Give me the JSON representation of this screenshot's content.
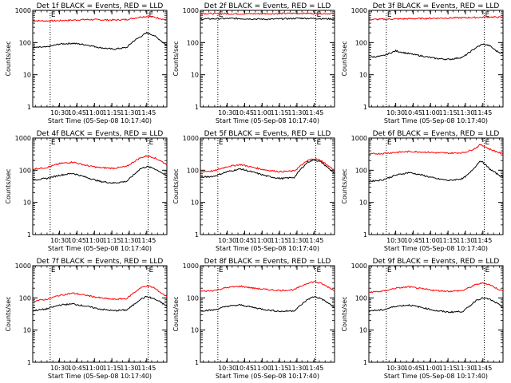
{
  "chart_data": [
    {
      "type": "line",
      "title": "Det 1f BLACK = Events, RED = LLD",
      "xlabel": "Start Time (05-Sep-08 10:17:40)",
      "ylabel": "Counts/sec",
      "yscale": "log",
      "ylim": [
        1,
        1000
      ],
      "y_ticks": [
        "1",
        "10",
        "100",
        "1000"
      ],
      "x_ticks": [
        "10:30",
        "10:45",
        "11:00",
        "11:15",
        "11:30",
        "11:45"
      ],
      "markers": [
        "E",
        "E"
      ],
      "series": [
        {
          "color": "#ff0000",
          "x": [
            0,
            0.1,
            0.2,
            0.3,
            0.4,
            0.5,
            0.6,
            0.7,
            0.8,
            0.85,
            0.9,
            0.95,
            1.0
          ],
          "y": [
            480,
            470,
            480,
            500,
            520,
            510,
            500,
            520,
            620,
            650,
            620,
            560,
            500
          ]
        },
        {
          "color": "#000000",
          "x": [
            0,
            0.1,
            0.2,
            0.3,
            0.4,
            0.5,
            0.6,
            0.7,
            0.75,
            0.8,
            0.85,
            0.9,
            0.95,
            1.0
          ],
          "y": [
            70,
            72,
            90,
            95,
            85,
            70,
            62,
            70,
            110,
            150,
            200,
            170,
            120,
            80
          ]
        }
      ]
    },
    {
      "type": "line",
      "title": "Det 2f BLACK = Events, RED = LLD",
      "xlabel": "Start Time (05-Sep-08 10:17:40)",
      "ylabel": "Counts/sec",
      "yscale": "log",
      "ylim": [
        1,
        1000
      ],
      "y_ticks": [
        "1",
        "10",
        "100",
        "1000"
      ],
      "x_ticks": [
        "10:30",
        "10:45",
        "11:00",
        "11:15",
        "11:30",
        "11:45"
      ],
      "markers": [
        "E",
        "E"
      ],
      "series": [
        {
          "color": "#ff0000",
          "x": [
            0,
            0.25,
            0.5,
            0.75,
            1.0
          ],
          "y": [
            800,
            780,
            790,
            810,
            790
          ]
        },
        {
          "color": "#000000",
          "x": [
            0,
            0.25,
            0.5,
            0.75,
            1.0
          ],
          "y": [
            540,
            560,
            530,
            570,
            540
          ]
        }
      ]
    },
    {
      "type": "line",
      "title": "Det 3f BLACK = Events, RED = LLD",
      "xlabel": "Start Time (05-Sep-08 10:17:40)",
      "ylabel": "Counts/sec",
      "yscale": "log",
      "ylim": [
        1,
        1000
      ],
      "y_ticks": [
        "1",
        "10",
        "100",
        "1000"
      ],
      "x_ticks": [
        "10:30",
        "10:45",
        "11:00",
        "11:15",
        "11:30",
        "11:45"
      ],
      "markers": [
        "E",
        "E"
      ],
      "series": [
        {
          "color": "#ff0000",
          "x": [
            0,
            0.2,
            0.4,
            0.6,
            0.8,
            0.9,
            1.0
          ],
          "y": [
            520,
            540,
            560,
            580,
            600,
            620,
            610
          ]
        },
        {
          "color": "#000000",
          "x": [
            0,
            0.1,
            0.2,
            0.3,
            0.4,
            0.5,
            0.6,
            0.7,
            0.8,
            0.85,
            0.9,
            0.95,
            1.0
          ],
          "y": [
            35,
            38,
            55,
            45,
            38,
            32,
            30,
            35,
            70,
            90,
            80,
            55,
            45
          ]
        }
      ]
    },
    {
      "type": "line",
      "title": "Det 4f BLACK = Events, RED = LLD",
      "xlabel": "Start Time (05-Sep-08 10:17:40)",
      "ylabel": "Counts/sec",
      "yscale": "log",
      "ylim": [
        1,
        1000
      ],
      "y_ticks": [
        "1",
        "10",
        "100",
        "1000"
      ],
      "x_ticks": [
        "10:30",
        "10:45",
        "11:00",
        "11:15",
        "11:30",
        "11:45"
      ],
      "markers": [
        "E",
        "E"
      ],
      "series": [
        {
          "color": "#ff0000",
          "x": [
            0,
            0.1,
            0.2,
            0.3,
            0.4,
            0.5,
            0.6,
            0.7,
            0.75,
            0.8,
            0.85,
            0.9,
            0.95,
            1.0
          ],
          "y": [
            110,
            120,
            160,
            180,
            140,
            120,
            115,
            130,
            180,
            240,
            280,
            250,
            200,
            150
          ]
        },
        {
          "color": "#000000",
          "x": [
            0,
            0.1,
            0.2,
            0.3,
            0.4,
            0.5,
            0.6,
            0.7,
            0.75,
            0.8,
            0.85,
            0.9,
            0.95,
            1.0
          ],
          "y": [
            50,
            55,
            70,
            80,
            60,
            45,
            40,
            45,
            70,
            110,
            130,
            115,
            90,
            65
          ]
        }
      ]
    },
    {
      "type": "line",
      "title": "Det 5f BLACK = Events, RED = LLD",
      "xlabel": "Start Time (05-Sep-08 10:17:40)",
      "ylabel": "Counts/sec",
      "yscale": "log",
      "ylim": [
        1,
        1000
      ],
      "y_ticks": [
        "1",
        "10",
        "100",
        "1000"
      ],
      "x_ticks": [
        "10:30",
        "10:45",
        "11:00",
        "11:15",
        "11:30",
        "11:45"
      ],
      "markers": [
        "E",
        "E"
      ],
      "series": [
        {
          "color": "#ff0000",
          "x": [
            0,
            0.1,
            0.2,
            0.3,
            0.4,
            0.5,
            0.6,
            0.7,
            0.75,
            0.8,
            0.85,
            0.9,
            0.95,
            1.0
          ],
          "y": [
            90,
            95,
            130,
            150,
            120,
            100,
            90,
            95,
            140,
            200,
            230,
            200,
            140,
            100
          ]
        },
        {
          "color": "#000000",
          "x": [
            0,
            0.1,
            0.2,
            0.3,
            0.4,
            0.5,
            0.6,
            0.7,
            0.75,
            0.8,
            0.85,
            0.9,
            0.95,
            1.0
          ],
          "y": [
            60,
            65,
            90,
            110,
            85,
            65,
            55,
            60,
            110,
            180,
            210,
            180,
            120,
            80
          ]
        }
      ]
    },
    {
      "type": "line",
      "title": "Det 6f BLACK = Events, RED = LLD",
      "xlabel": "Start Time (05-Sep-08 10:17:40)",
      "ylabel": "Counts/sec",
      "yscale": "log",
      "ylim": [
        1,
        1000
      ],
      "y_ticks": [
        "1",
        "10",
        "100",
        "1000"
      ],
      "x_ticks": [
        "10:30",
        "10:45",
        "11:00",
        "11:15",
        "11:30",
        "11:45"
      ],
      "markers": [
        "E",
        "E"
      ],
      "series": [
        {
          "color": "#ff0000",
          "x": [
            0,
            0.1,
            0.2,
            0.3,
            0.4,
            0.5,
            0.6,
            0.7,
            0.75,
            0.8,
            0.83,
            0.86,
            0.9,
            0.95,
            1.0
          ],
          "y": [
            320,
            330,
            360,
            380,
            370,
            350,
            340,
            350,
            400,
            500,
            620,
            560,
            450,
            380,
            320
          ]
        },
        {
          "color": "#000000",
          "x": [
            0,
            0.1,
            0.2,
            0.3,
            0.4,
            0.5,
            0.6,
            0.7,
            0.75,
            0.8,
            0.83,
            0.86,
            0.9,
            0.95,
            1.0
          ],
          "y": [
            45,
            50,
            70,
            85,
            70,
            55,
            48,
            55,
            80,
            140,
            200,
            160,
            110,
            80,
            60
          ]
        }
      ]
    },
    {
      "type": "line",
      "title": "Det 7f BLACK = Events, RED = LLD",
      "xlabel": "Start Time (05-Sep-08 10:17:40)",
      "ylabel": "Counts/sec",
      "yscale": "log",
      "ylim": [
        1,
        1000
      ],
      "y_ticks": [
        "1",
        "10",
        "100",
        "1000"
      ],
      "x_ticks": [
        "10:30",
        "10:45",
        "11:00",
        "11:15",
        "11:30",
        "11:45"
      ],
      "markers": [
        "E",
        "E"
      ],
      "series": [
        {
          "color": "#ff0000",
          "x": [
            0,
            0.1,
            0.2,
            0.3,
            0.4,
            0.5,
            0.6,
            0.7,
            0.75,
            0.8,
            0.85,
            0.9,
            0.95,
            1.0
          ],
          "y": [
            80,
            90,
            120,
            140,
            120,
            100,
            90,
            95,
            140,
            200,
            240,
            210,
            150,
            110
          ]
        },
        {
          "color": "#000000",
          "x": [
            0,
            0.1,
            0.2,
            0.3,
            0.4,
            0.5,
            0.6,
            0.7,
            0.75,
            0.8,
            0.85,
            0.9,
            0.95,
            1.0
          ],
          "y": [
            40,
            45,
            60,
            65,
            55,
            45,
            40,
            42,
            60,
            90,
            110,
            95,
            75,
            55
          ]
        }
      ]
    },
    {
      "type": "line",
      "title": "Det 8f BLACK = Events, RED = LLD",
      "xlabel": "Start Time (05-Sep-08 10:17:40)",
      "ylabel": "Counts/sec",
      "yscale": "log",
      "ylim": [
        1,
        1000
      ],
      "y_ticks": [
        "1",
        "10",
        "100",
        "1000"
      ],
      "x_ticks": [
        "10:30",
        "10:45",
        "11:00",
        "11:15",
        "11:30",
        "11:45"
      ],
      "markers": [
        "E",
        "E"
      ],
      "series": [
        {
          "color": "#ff0000",
          "x": [
            0,
            0.1,
            0.2,
            0.3,
            0.4,
            0.5,
            0.6,
            0.7,
            0.75,
            0.8,
            0.85,
            0.9,
            0.95,
            1.0
          ],
          "y": [
            160,
            170,
            210,
            230,
            200,
            180,
            170,
            180,
            230,
            290,
            320,
            280,
            220,
            170
          ]
        },
        {
          "color": "#000000",
          "x": [
            0,
            0.1,
            0.2,
            0.3,
            0.4,
            0.5,
            0.6,
            0.7,
            0.75,
            0.8,
            0.85,
            0.9,
            0.95,
            1.0
          ],
          "y": [
            40,
            42,
            55,
            60,
            50,
            42,
            38,
            40,
            60,
            90,
            110,
            95,
            70,
            50
          ]
        }
      ]
    },
    {
      "type": "line",
      "title": "Det 9f BLACK = Events, RED = LLD",
      "xlabel": "Start Time (05-Sep-08 10:17:40)",
      "ylabel": "Counts/sec",
      "yscale": "log",
      "ylim": [
        1,
        1000
      ],
      "y_ticks": [
        "1",
        "10",
        "100",
        "1000"
      ],
      "x_ticks": [
        "10:30",
        "10:45",
        "11:00",
        "11:15",
        "11:30",
        "11:45"
      ],
      "markers": [
        "E",
        "E"
      ],
      "series": [
        {
          "color": "#ff0000",
          "x": [
            0,
            0.1,
            0.2,
            0.3,
            0.4,
            0.5,
            0.6,
            0.7,
            0.75,
            0.8,
            0.85,
            0.9,
            0.95,
            1.0
          ],
          "y": [
            150,
            160,
            200,
            220,
            190,
            170,
            160,
            170,
            210,
            260,
            290,
            260,
            200,
            160
          ]
        },
        {
          "color": "#000000",
          "x": [
            0,
            0.1,
            0.2,
            0.3,
            0.4,
            0.5,
            0.6,
            0.7,
            0.75,
            0.8,
            0.85,
            0.9,
            0.95,
            1.0
          ],
          "y": [
            40,
            42,
            55,
            60,
            50,
            40,
            36,
            38,
            55,
            85,
            100,
            90,
            70,
            50
          ]
        }
      ]
    }
  ]
}
